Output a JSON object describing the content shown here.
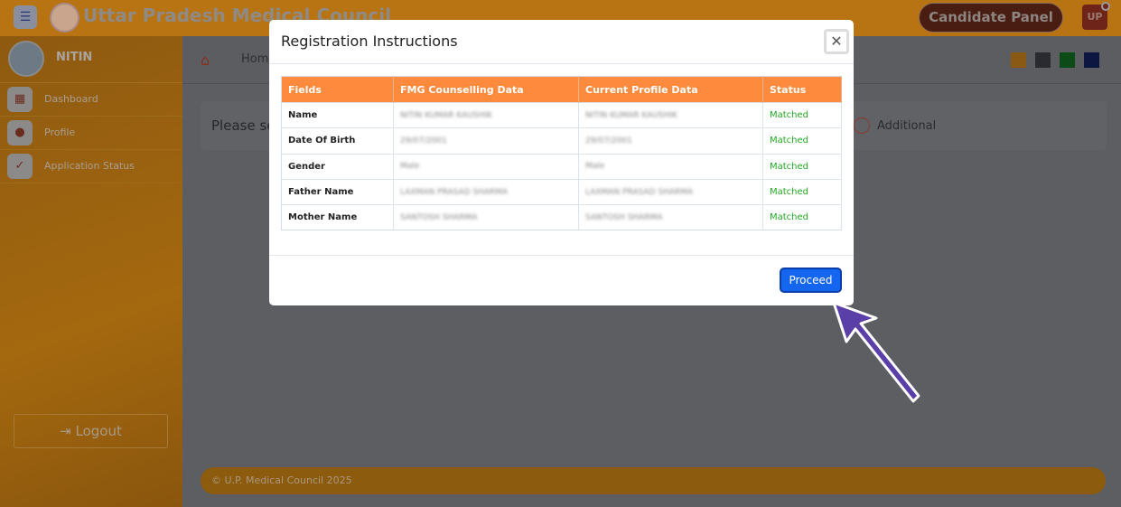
{
  "header": {
    "title": "Uttar Pradesh Medical Council",
    "candidate_panel": "Candidate Panel",
    "user_badge": "UP"
  },
  "sidebar": {
    "user": "NITIN",
    "items": [
      {
        "label": "Dashboard",
        "icon": "grid-icon"
      },
      {
        "label": "Profile",
        "icon": "user-icon"
      },
      {
        "label": "Application Status",
        "icon": "check-badge-icon"
      }
    ],
    "logout": "Logout"
  },
  "breadcrumb": {
    "home": "Home"
  },
  "theme_swatches": [
    "#b87412",
    "#34363b",
    "#0f7a1e",
    "#101a6a"
  ],
  "main": {
    "select_text": "Please se",
    "radio_label": "Additional"
  },
  "footer": {
    "text": "© U.P. Medical Council 2025"
  },
  "modal": {
    "title": "Registration Instructions",
    "columns": [
      "Fields",
      "FMG Counselling Data",
      "Current Profile Data",
      "Status"
    ],
    "rows": [
      {
        "field": "Name",
        "fmg": "NITIN KUMAR KAUSHIK",
        "current": "NITIN KUMAR KAUSHIK",
        "status": "Matched"
      },
      {
        "field": "Date Of Birth",
        "fmg": "29/07/2001",
        "current": "29/07/2001",
        "status": "Matched"
      },
      {
        "field": "Gender",
        "fmg": "Male",
        "current": "Male",
        "status": "Matched"
      },
      {
        "field": "Father Name",
        "fmg": "LAXMAN PRASAD SHARMA",
        "current": "LAXMAN PRASAD SHARMA",
        "status": "Matched"
      },
      {
        "field": "Mother Name",
        "fmg": "SANTOSH SHARMA",
        "current": "SANTOSH SHARMA",
        "status": "Matched"
      }
    ],
    "proceed": "Proceed"
  }
}
